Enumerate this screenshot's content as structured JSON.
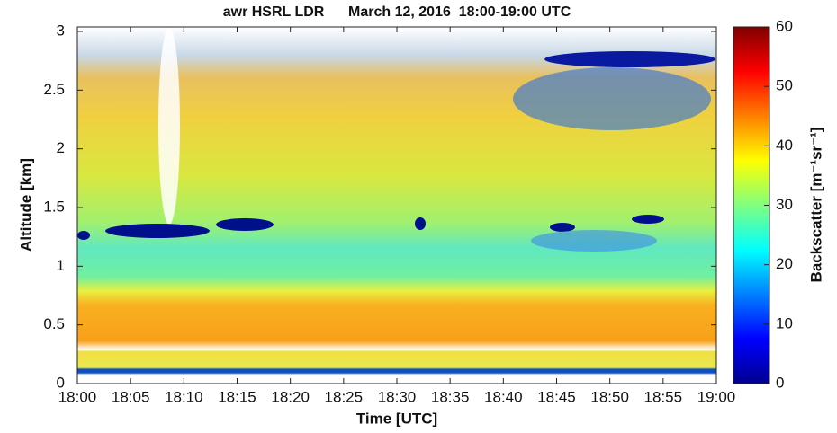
{
  "chart_data": {
    "type": "heatmap",
    "title": "awr HSRL LDR      March 12, 2016  18:00-19:00 UTC",
    "xlabel": "Time [UTC]",
    "ylabel": "Altitude [km]",
    "xlim": [
      "18:00",
      "19:00"
    ],
    "xticks": [
      "18:00",
      "18:05",
      "18:10",
      "18:15",
      "18:20",
      "18:25",
      "18:30",
      "18:35",
      "18:40",
      "18:45",
      "18:50",
      "18:55",
      "19:00"
    ],
    "ylim": [
      0,
      3
    ],
    "yticks": [
      0,
      0.5,
      1,
      1.5,
      2,
      2.5,
      3
    ],
    "colorbar": {
      "label": "Backscatter [m⁻¹sr⁻¹]",
      "lim": [
        0,
        60
      ],
      "ticks": [
        0,
        10,
        20,
        30,
        40,
        50,
        60
      ],
      "colormap": "jet"
    }
  }
}
